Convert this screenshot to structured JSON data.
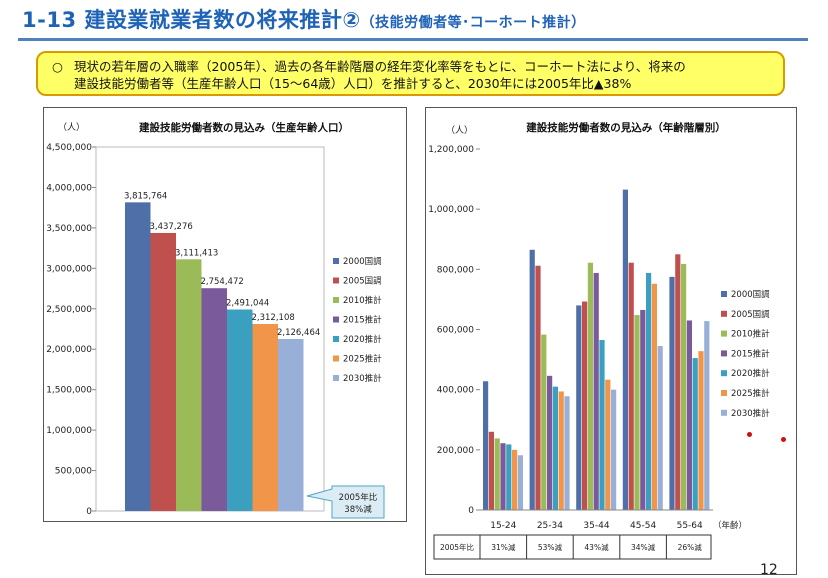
{
  "header": {
    "title": "1-13 建設業就業者数の将来推計②",
    "subtitle": "（技能労働者等･コーホート推計）"
  },
  "summary": {
    "bullet": "○",
    "lines": [
      "現状の若年層の入職率（2005年）、過去の各年齢階層の経年変化率等をもとに、コーホート法により、将来の",
      "建設技能労働者等（生産年齢人口（15～64歳）人口）を推計すると、2030年には2005年比▲38%"
    ]
  },
  "colors": {
    "2000国調": "#4f6fa8",
    "2005国調": "#c0504d",
    "2010推計": "#9bbb59",
    "2015推計": "#7b5a9c",
    "2020推計": "#3ba0c0",
    "2025推計": "#f0954a",
    "2030推計": "#98b0d8"
  },
  "chart_data": [
    {
      "type": "bar",
      "title": "建設技能労働者数の見込み（生産年齢人口）",
      "ylabel": "（人）",
      "ylim": [
        0,
        4500000
      ],
      "yticks": [
        "0",
        "500,000",
        "1,000,000",
        "1,500,000",
        "2,000,000",
        "2,500,000",
        "3,000,000",
        "3,500,000",
        "4,000,000",
        "4,500,000"
      ],
      "ytick_values": [
        0,
        500000,
        1000000,
        1500000,
        2000000,
        2500000,
        3000000,
        3500000,
        4000000,
        4500000
      ],
      "series": [
        "2000国調",
        "2005国調",
        "2010推計",
        "2015推計",
        "2020推計",
        "2025推計",
        "2030推計"
      ],
      "values": [
        3815764,
        3437276,
        3111413,
        2754472,
        2491044,
        2312108,
        2126464
      ],
      "data_labels": [
        "3,815,764",
        "3,437,276",
        "3,111,413",
        "2,754,472",
        "2,491,044",
        "2,312,108",
        "2,126,464"
      ],
      "callout": [
        "2005年比",
        "38%減"
      ],
      "legend_position": "right"
    },
    {
      "type": "bar",
      "title": "建設技能労働者数の見込み（年齢階層別）",
      "ylabel": "（人）",
      "xlabel": "（年齢）",
      "ylim": [
        0,
        1200000
      ],
      "yticks": [
        "0",
        "200,000",
        "400,000",
        "600,000",
        "800,000",
        "1,000,000",
        "1,200,000"
      ],
      "ytick_values": [
        0,
        200000,
        400000,
        600000,
        800000,
        1000000,
        1200000
      ],
      "categories": [
        "15-24",
        "25-34",
        "35-44",
        "45-54",
        "55-64"
      ],
      "series": [
        {
          "name": "2000国調",
          "values": [
            428000,
            865000,
            680000,
            1065000,
            775000
          ]
        },
        {
          "name": "2005国調",
          "values": [
            260000,
            812000,
            693000,
            822000,
            850000
          ]
        },
        {
          "name": "2010推計",
          "values": [
            238000,
            583000,
            822000,
            648000,
            818000
          ]
        },
        {
          "name": "2015推計",
          "values": [
            222000,
            446000,
            788000,
            665000,
            630000
          ]
        },
        {
          "name": "2020推計",
          "values": [
            218000,
            410000,
            565000,
            788000,
            505000
          ]
        },
        {
          "name": "2025推計",
          "values": [
            200000,
            394000,
            433000,
            752000,
            528000
          ]
        },
        {
          "name": "2030推計",
          "values": [
            182000,
            378000,
            400000,
            545000,
            628000
          ]
        }
      ],
      "table": {
        "row_label": "2005年比",
        "values": [
          "31%減",
          "53%減",
          "43%減",
          "34%減",
          "26%減"
        ]
      },
      "legend_position": "right"
    }
  ],
  "page": {
    "number": "12"
  }
}
